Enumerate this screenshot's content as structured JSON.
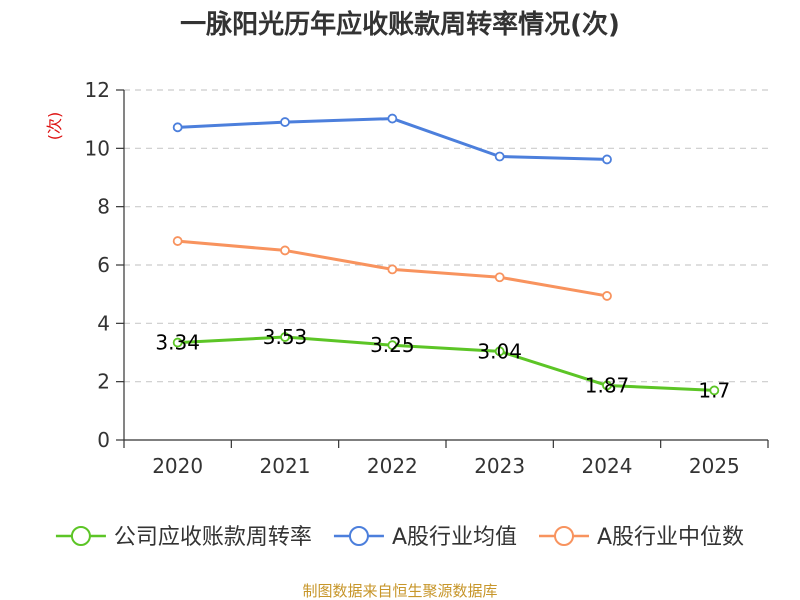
{
  "chart_data": {
    "type": "line",
    "title": "一脉阳光历年应收账款周转率情况(次)",
    "ylabel": "(次)",
    "xlabel": "",
    "ylim": [
      0,
      12
    ],
    "yticks": [
      "0",
      "2",
      "4",
      "6",
      "8",
      "10",
      "12"
    ],
    "categories": [
      "2020",
      "2021",
      "2022",
      "2023",
      "2024",
      "2025"
    ],
    "series": [
      {
        "name": "公司应收账款周转率",
        "values": [
          3.34,
          3.53,
          3.25,
          3.04,
          1.87,
          1.7
        ],
        "labels": [
          "3.34",
          "3.53",
          "3.25",
          "3.04",
          "1.87",
          "1.7"
        ],
        "color": "#5cc526"
      },
      {
        "name": "A股行业均值",
        "values": [
          10.72,
          10.9,
          11.02,
          9.72,
          9.62,
          null
        ],
        "color": "#4c7fdc"
      },
      {
        "name": "A股行业中位数",
        "values": [
          6.82,
          6.5,
          5.85,
          5.58,
          4.94,
          null
        ],
        "color": "#f8935e"
      }
    ],
    "grid": true,
    "legend": "bottom"
  },
  "colors": {
    "unit_label": "#dd1111",
    "source_text": "#c7962a",
    "axis": "#333333",
    "grid": "#cccccc"
  },
  "source": "制图数据来自恒生聚源数据库"
}
